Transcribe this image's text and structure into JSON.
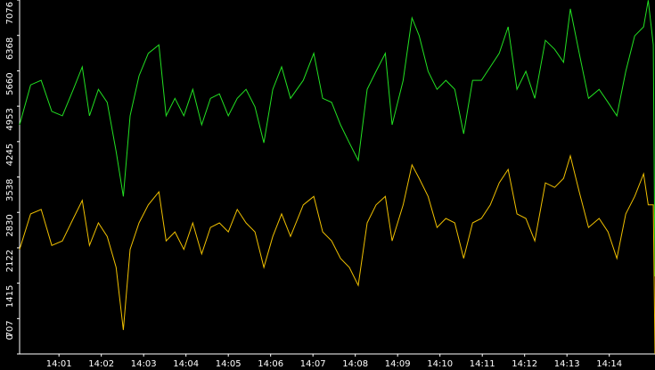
{
  "chart_data": {
    "type": "line",
    "x": [
      840.07,
      840.33,
      840.58,
      840.83,
      841.08,
      841.34,
      841.55,
      841.72,
      841.93,
      842.14,
      842.35,
      842.52,
      842.68,
      842.89,
      843.11,
      843.36,
      843.53,
      843.74,
      843.95,
      844.16,
      844.37,
      844.58,
      844.79,
      845.0,
      845.21,
      845.42,
      845.63,
      845.84,
      846.05,
      846.26,
      846.47,
      846.77,
      847.02,
      847.23,
      847.44,
      847.65,
      847.86,
      848.07,
      848.28,
      848.49,
      848.71,
      848.87,
      849.13,
      849.34,
      849.51,
      849.72,
      849.93,
      850.14,
      850.35,
      850.56,
      850.77,
      850.98,
      851.19,
      851.4,
      851.61,
      851.82,
      852.03,
      852.24,
      852.49,
      852.71,
      852.92,
      853.08,
      853.29,
      853.51,
      853.76,
      853.97,
      854.18,
      854.39,
      854.6,
      854.81,
      854.92,
      855.04,
      855.08
    ],
    "series": [
      {
        "color": "#22e022",
        "values": [
          4580,
          5380,
          5470,
          4850,
          4760,
          5290,
          5740,
          4760,
          5290,
          5030,
          4050,
          3150,
          4760,
          5560,
          6010,
          6180,
          4760,
          5110,
          4760,
          5290,
          4580,
          5110,
          5200,
          4760,
          5110,
          5290,
          4940,
          4220,
          5290,
          5740,
          5110,
          5470,
          6010,
          5110,
          5030,
          4580,
          4220,
          3870,
          5290,
          5650,
          6010,
          4580,
          5470,
          6720,
          6360,
          5650,
          5290,
          5470,
          5290,
          4400,
          5470,
          5470,
          5740,
          6010,
          6540,
          5290,
          5650,
          5110,
          6270,
          6090,
          5830,
          6900,
          6010,
          5110,
          5290,
          5030,
          4760,
          5650,
          6360,
          6540,
          7070,
          6180,
          1550
        ]
      },
      {
        "color": "#f0c000",
        "values": [
          2090,
          2800,
          2890,
          2170,
          2260,
          2710,
          3070,
          2170,
          2620,
          2350,
          1730,
          480,
          2090,
          2620,
          2980,
          3240,
          2260,
          2440,
          2090,
          2620,
          2000,
          2530,
          2620,
          2440,
          2890,
          2620,
          2440,
          1730,
          2350,
          2800,
          2350,
          2980,
          3150,
          2440,
          2260,
          1910,
          1730,
          1370,
          2620,
          2980,
          3150,
          2260,
          2980,
          3780,
          3510,
          3150,
          2530,
          2710,
          2620,
          1910,
          2620,
          2710,
          2980,
          3420,
          3690,
          2800,
          2710,
          2260,
          3420,
          3330,
          3510,
          3960,
          3240,
          2530,
          2710,
          2440,
          1910,
          2800,
          3150,
          3600,
          2980,
          2980,
          0
        ]
      }
    ],
    "xlim": [
      840.07,
      855.08
    ],
    "xticks": [
      {
        "value": 841,
        "label": "14:01"
      },
      {
        "value": 842,
        "label": "14:02"
      },
      {
        "value": 843,
        "label": "14:03"
      },
      {
        "value": 844,
        "label": "14:04"
      },
      {
        "value": 845,
        "label": "14:05"
      },
      {
        "value": 846,
        "label": "14:06"
      },
      {
        "value": 847,
        "label": "14:07"
      },
      {
        "value": 848,
        "label": "14:08"
      },
      {
        "value": 849,
        "label": "14:09"
      },
      {
        "value": 850,
        "label": "14:10"
      },
      {
        "value": 851,
        "label": "14:11"
      },
      {
        "value": 852,
        "label": "14:12"
      },
      {
        "value": 853,
        "label": "14:13"
      },
      {
        "value": 854,
        "label": "14:14"
      }
    ],
    "ylim": [
      0,
      7076
    ],
    "yticks": [
      0,
      707,
      1415,
      2122,
      2830,
      3538,
      4245,
      4953,
      5660,
      6368,
      7076
    ],
    "grid": false
  }
}
